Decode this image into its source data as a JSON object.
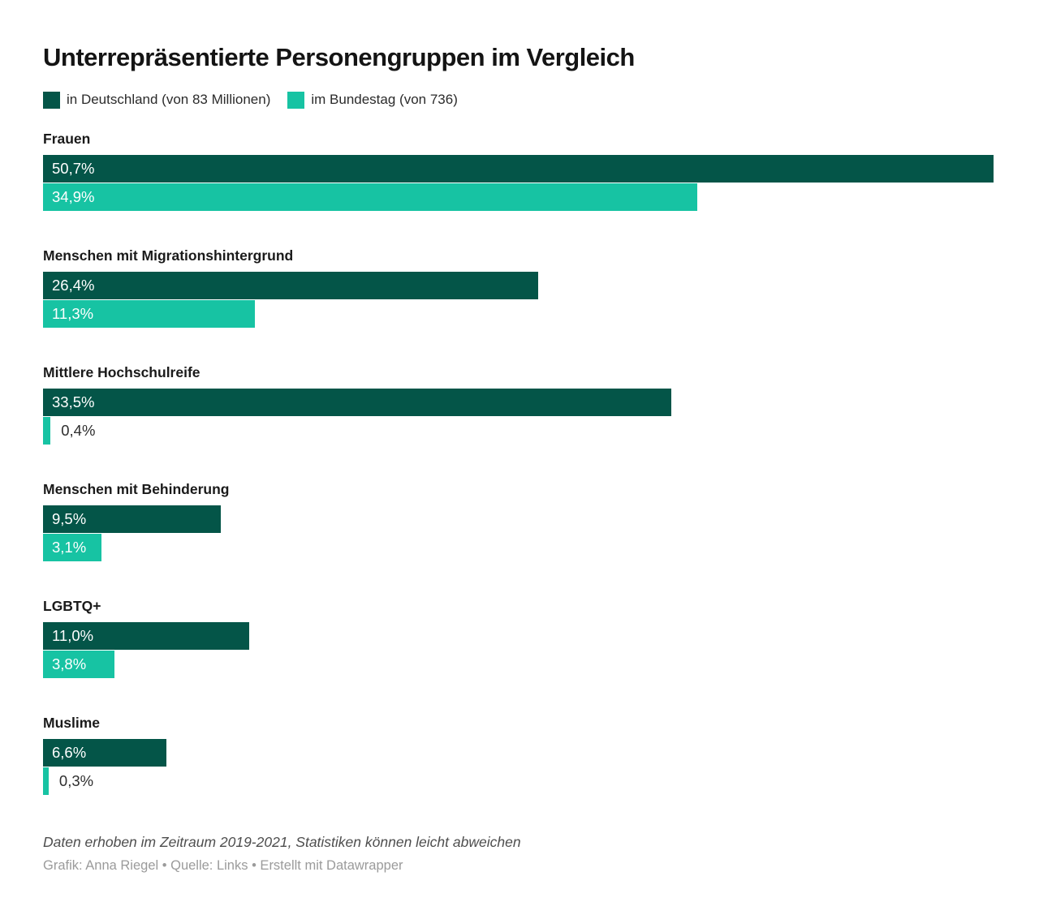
{
  "title": "Unterrepräsentierte Personengruppen im Vergleich",
  "colors": {
    "germany_dark_green": "#045548",
    "bundestag_teal": "#17c3a3"
  },
  "legend": {
    "items": [
      {
        "label": "in Deutschland (von 83 Millionen)",
        "color": "#045548"
      },
      {
        "label": "im Bundestag (von 736)",
        "color": "#17c3a3"
      }
    ]
  },
  "chart_data": {
    "type": "bar",
    "orientation": "horizontal",
    "title": "Unterrepräsentierte Personengruppen im Vergleich",
    "categories": [
      "Frauen",
      "Menschen mit Migrationshintergrund",
      "Mittlere Hochschulreife",
      "Menschen mit Behinderung",
      "LGBTQ+",
      "Muslime"
    ],
    "series": [
      {
        "name": "in Deutschland (von 83 Millionen)",
        "color": "#045548",
        "values": [
          50.7,
          26.4,
          33.5,
          9.5,
          11.0,
          6.6
        ],
        "labels": [
          "50,7%",
          "26,4%",
          "33,5%",
          "9,5%",
          "11,0%",
          "6,6%"
        ]
      },
      {
        "name": "im Bundestag (von 736)",
        "color": "#17c3a3",
        "values": [
          34.9,
          11.3,
          0.4,
          3.1,
          3.8,
          0.3
        ],
        "labels": [
          "34,9%",
          "11,3%",
          "0,4%",
          "3,1%",
          "3,8%",
          "0,3%"
        ]
      }
    ],
    "xmax": 50.7,
    "grid": false,
    "legend_position": "top",
    "value_suffix": "%"
  },
  "footer": {
    "note": "Daten erhoben im Zeitraum 2019-2021, Statistiken können leicht abweichen",
    "byline": "Grafik: Anna Riegel • Quelle: Links • Erstellt mit Datawrapper"
  }
}
